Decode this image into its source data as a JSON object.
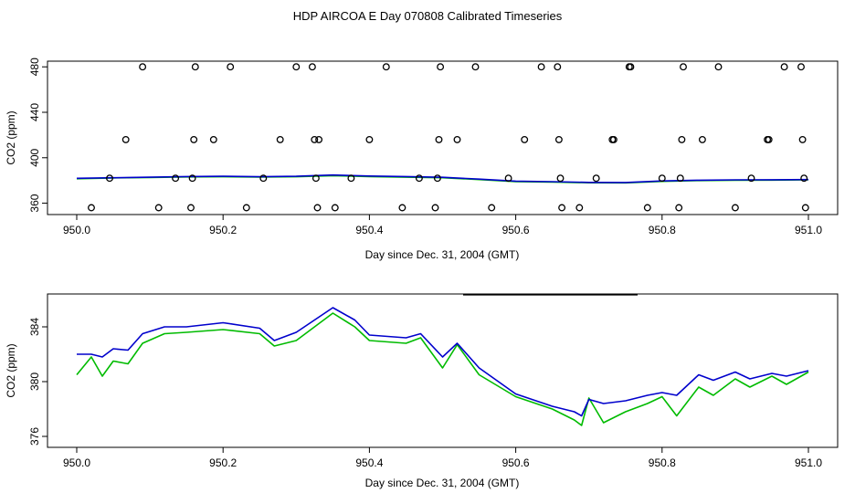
{
  "figure": {
    "title": "HDP AIRCOA E  Day 070808  Calibrated Timeseries"
  },
  "colors": {
    "series_green": "#00bb00",
    "series_blue": "#0000cc",
    "axis": "#000000"
  },
  "chart_data": [
    {
      "type": "line",
      "title": "",
      "xlabel": "Day since Dec. 31, 2004 (GMT)",
      "ylabel": "CO2 (ppm)",
      "xlim": [
        950.0,
        951.0
      ],
      "ylim": [
        350,
        485
      ],
      "xticks": [
        "950.0",
        "950.2",
        "950.4",
        "950.6",
        "950.8",
        "951.0"
      ],
      "xtick_values": [
        950.0,
        950.2,
        950.4,
        950.6,
        950.8,
        951.0
      ],
      "yticks": [
        "360",
        "400",
        "440",
        "480"
      ],
      "ytick_values": [
        360,
        400,
        440,
        480
      ],
      "grid": false,
      "series": [
        {
          "color_key": "series_green",
          "x": [
            950.0,
            950.05,
            950.1,
            950.15,
            950.2,
            950.25,
            950.3,
            950.35,
            950.4,
            950.45,
            950.5,
            950.55,
            950.6,
            950.65,
            950.7,
            950.75,
            950.8,
            950.85,
            950.9,
            950.95,
            951.0
          ],
          "y": [
            381.5,
            382.2,
            382.6,
            383.1,
            383.3,
            383.0,
            383.3,
            384.2,
            383.4,
            382.9,
            382.4,
            380.8,
            379.0,
            378.6,
            378.0,
            377.9,
            379.2,
            379.9,
            380.2,
            380.3,
            380.6
          ]
        },
        {
          "color_key": "series_blue",
          "x": [
            950.0,
            950.05,
            950.1,
            950.15,
            950.2,
            950.25,
            950.3,
            950.35,
            950.4,
            950.45,
            950.5,
            950.55,
            950.6,
            950.65,
            950.7,
            950.75,
            950.8,
            950.85,
            950.9,
            950.95,
            951.0
          ],
          "y": [
            381.9,
            382.4,
            382.9,
            383.4,
            383.7,
            383.3,
            383.7,
            384.8,
            383.9,
            383.4,
            382.8,
            381.2,
            379.4,
            378.9,
            378.3,
            378.2,
            379.6,
            380.2,
            380.5,
            380.6,
            380.8
          ]
        },
        {
          "type": "scatter",
          "marker": "open-circle",
          "x": [
            950.02,
            950.045,
            950.067,
            950.09,
            950.112,
            950.135,
            950.156,
            950.158,
            950.16,
            950.162,
            950.187,
            950.21,
            950.232,
            950.255,
            950.278,
            950.3,
            950.322,
            950.325,
            950.327,
            950.329,
            950.331,
            950.353,
            950.375,
            950.4,
            950.423,
            950.445,
            950.468,
            950.49,
            950.493,
            950.495,
            950.497,
            950.52,
            950.545,
            950.567,
            950.59,
            950.612,
            950.635,
            950.657,
            950.659,
            950.661,
            950.663,
            950.687,
            950.71,
            950.732,
            950.734,
            950.755,
            950.757,
            950.78,
            950.8,
            950.823,
            950.825,
            950.827,
            950.829,
            950.855,
            950.877,
            950.9,
            950.922,
            950.944,
            950.946,
            950.967,
            950.99,
            950.992,
            950.994,
            950.996
          ],
          "y": [
            356,
            382,
            416,
            480,
            356,
            382,
            356,
            382,
            416,
            480,
            416,
            480,
            356,
            382,
            416,
            480,
            480,
            416,
            382,
            356,
            416,
            356,
            382,
            416,
            480,
            356,
            382,
            356,
            382,
            416,
            480,
            416,
            480,
            356,
            382,
            416,
            480,
            480,
            416,
            382,
            356,
            356,
            382,
            416,
            416,
            480,
            480,
            356,
            382,
            356,
            382,
            416,
            480,
            416,
            480,
            356,
            382,
            416,
            416,
            480,
            480,
            416,
            382,
            356
          ]
        }
      ]
    },
    {
      "type": "line",
      "title": "",
      "xlabel": "Day since Dec. 31, 2004 (GMT)",
      "ylabel": "CO2 (ppm)",
      "xlim": [
        950.0,
        951.0
      ],
      "ylim": [
        375.2,
        386.4
      ],
      "xticks": [
        "950.0",
        "950.2",
        "950.4",
        "950.6",
        "950.8",
        "951.0"
      ],
      "xtick_values": [
        950.0,
        950.2,
        950.4,
        950.6,
        950.8,
        951.0
      ],
      "yticks": [
        "376",
        "380",
        "384"
      ],
      "ytick_values": [
        376,
        380,
        384
      ],
      "grid": false,
      "series": [
        {
          "color_key": "series_green",
          "x": [
            950.0,
            950.02,
            950.035,
            950.05,
            950.07,
            950.09,
            950.12,
            950.15,
            950.2,
            950.25,
            950.27,
            950.3,
            950.35,
            950.38,
            950.4,
            950.45,
            950.47,
            950.5,
            950.52,
            950.55,
            950.6,
            950.65,
            950.68,
            950.69,
            950.7,
            950.72,
            950.75,
            950.78,
            950.8,
            950.82,
            950.85,
            950.87,
            950.9,
            950.92,
            950.95,
            950.97,
            951.0
          ],
          "y": [
            380.5,
            381.8,
            380.4,
            381.5,
            381.3,
            382.8,
            383.5,
            383.6,
            383.8,
            383.5,
            382.6,
            383.0,
            385.0,
            384.0,
            383.0,
            382.8,
            383.2,
            381.0,
            382.7,
            380.5,
            378.9,
            378.0,
            377.2,
            376.8,
            378.8,
            377.0,
            377.8,
            378.4,
            378.9,
            377.5,
            379.6,
            379.0,
            380.2,
            379.6,
            380.4,
            379.8,
            380.7
          ]
        },
        {
          "color_key": "series_blue",
          "x": [
            950.0,
            950.02,
            950.035,
            950.05,
            950.07,
            950.09,
            950.12,
            950.15,
            950.2,
            950.25,
            950.27,
            950.3,
            950.35,
            950.38,
            950.4,
            950.45,
            950.47,
            950.5,
            950.52,
            950.55,
            950.6,
            950.65,
            950.68,
            950.69,
            950.7,
            950.72,
            950.75,
            950.78,
            950.8,
            950.82,
            950.85,
            950.87,
            950.9,
            950.92,
            950.95,
            950.97,
            951.0
          ],
          "y": [
            382.0,
            382.0,
            381.8,
            382.4,
            382.3,
            383.5,
            384.0,
            384.0,
            384.3,
            383.9,
            383.0,
            383.6,
            385.4,
            384.5,
            383.4,
            383.2,
            383.5,
            381.8,
            382.8,
            381.0,
            379.1,
            378.2,
            377.8,
            377.5,
            378.7,
            378.4,
            378.6,
            379.0,
            379.2,
            379.0,
            380.5,
            380.1,
            380.7,
            380.2,
            380.6,
            380.4,
            380.8
          ]
        }
      ]
    }
  ]
}
